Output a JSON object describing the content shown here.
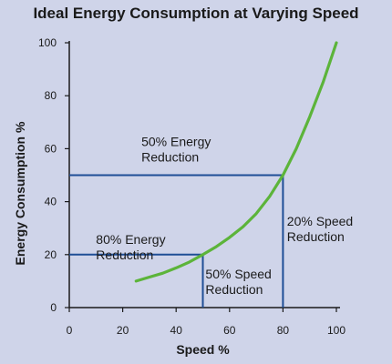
{
  "chart_data": {
    "type": "line",
    "title": "Ideal Energy Consumption at Varying Speed",
    "xlabel": "Speed %",
    "ylabel": "Energy Consumption %",
    "xlim": [
      0,
      100
    ],
    "ylim": [
      0,
      100
    ],
    "x_ticks": [
      "0",
      "20",
      "40",
      "60",
      "80",
      "100"
    ],
    "y_ticks": [
      "0",
      "20",
      "40",
      "60",
      "80",
      "100"
    ],
    "grid": false,
    "series": [
      {
        "x": [
          25,
          30,
          35,
          40,
          45,
          50,
          55,
          60,
          65,
          70,
          75,
          80,
          85,
          90,
          95,
          100
        ],
        "y": [
          10,
          11.5,
          13,
          15,
          17.2,
          20,
          23,
          26.5,
          30.5,
          35.5,
          42,
          50,
          60,
          72,
          85,
          100
        ]
      }
    ],
    "reference_lines": [
      {
        "label_lines": [
          "80% Energy",
          "Reduction"
        ],
        "x": 50,
        "y": 20
      },
      {
        "label_lines": [
          "50% Energy",
          "Reduction"
        ],
        "x": 80,
        "y": 50
      }
    ],
    "annotations": [
      {
        "lines": [
          "80% Energy",
          "Reduction"
        ],
        "x": 10,
        "y": 24
      },
      {
        "lines": [
          "50% Energy",
          "Reduction"
        ],
        "x": 27,
        "y": 61
      },
      {
        "lines": [
          "50% Speed",
          "Reduction"
        ],
        "x": 51,
        "y": 11
      },
      {
        "lines": [
          "20% Speed",
          "Reduction"
        ],
        "x": 81.5,
        "y": 31
      }
    ],
    "colors": {
      "curve": "#5cb43a",
      "reference": "#1f4e96",
      "axis": "#1a1a1a",
      "background": "#cfd4e9"
    }
  }
}
